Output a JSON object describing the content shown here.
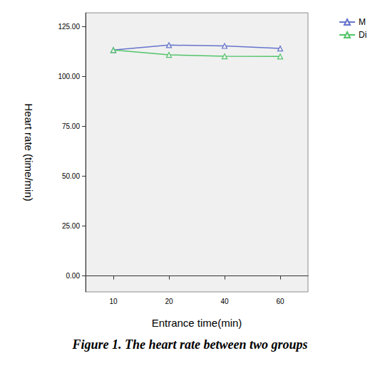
{
  "chart_data": {
    "type": "line",
    "title": "Figure 1. The heart rate between two groups",
    "x_label": "Entrance time(min)",
    "y_label": "Heart rate (time/min)",
    "categories": [
      "10",
      "20",
      "40",
      "60"
    ],
    "series": [
      {
        "name": "M",
        "color": "#6674cc",
        "marker": "triangle",
        "values": [
          113.3,
          115.8,
          115.4,
          114.1
        ]
      },
      {
        "name": "Di",
        "color": "#52c46a",
        "marker": "triangle",
        "values": [
          113.3,
          110.9,
          110.2,
          110.1
        ]
      }
    ],
    "ylim": [
      -8,
      132
    ],
    "yticks": [
      {
        "value": 0,
        "label": "0.00"
      },
      {
        "value": 25,
        "label": "25.00"
      },
      {
        "value": 50,
        "label": "50.00"
      },
      {
        "value": 75,
        "label": "75.00"
      },
      {
        "value": 100,
        "label": "100.00"
      },
      {
        "value": 125,
        "label": "125.00"
      }
    ],
    "grid": false,
    "legend": "top-right"
  }
}
